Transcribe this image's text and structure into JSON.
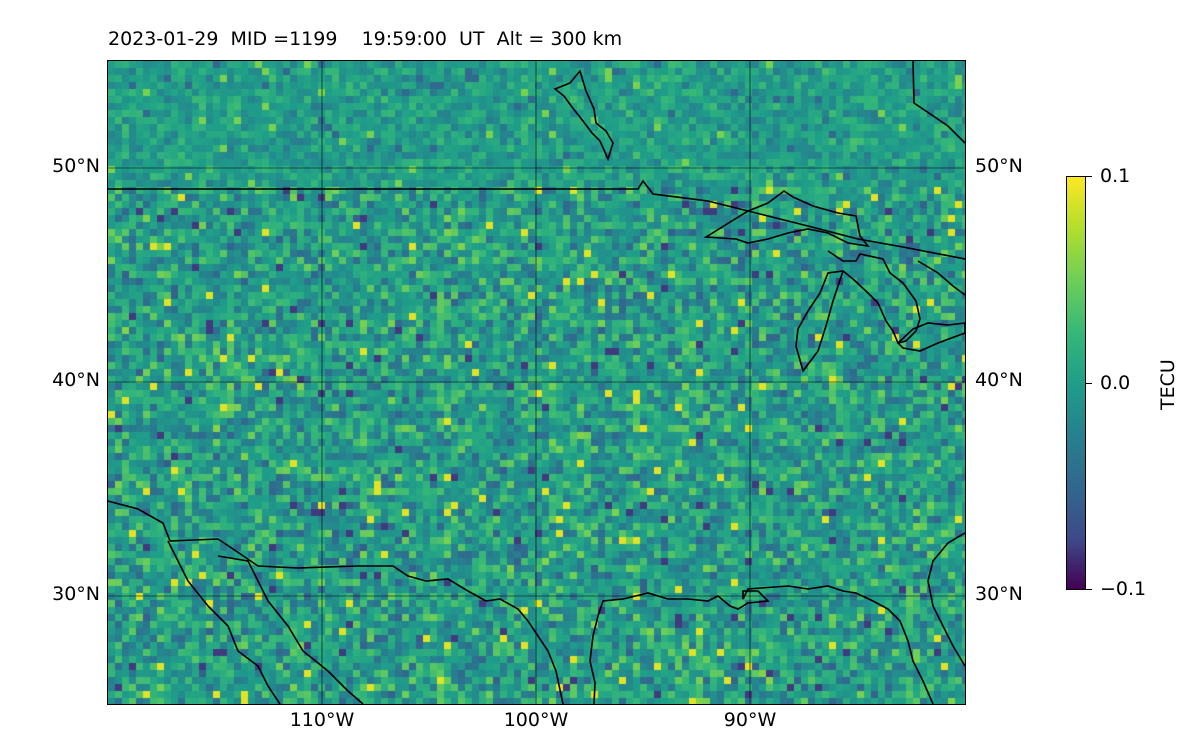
{
  "title": "2023-01-29  MID =1199    19:59:00  UT  Alt = 300 km",
  "map": {
    "lat_labels": [
      "50°N",
      "40°N",
      "30°N"
    ],
    "lon_labels": [
      "110°W",
      "100°W",
      "90°W"
    ],
    "extent_lon": [
      -120,
      -80
    ],
    "extent_lat": [
      25,
      55
    ]
  },
  "colorbar": {
    "label": "TECU",
    "tick_labels": [
      "0.1",
      "0.0",
      "−0.1"
    ],
    "range": [
      -0.1,
      0.1
    ],
    "colormap": "viridis"
  },
  "colors": {
    "background_mid": "#2a8f8c",
    "border": "#000000"
  }
}
